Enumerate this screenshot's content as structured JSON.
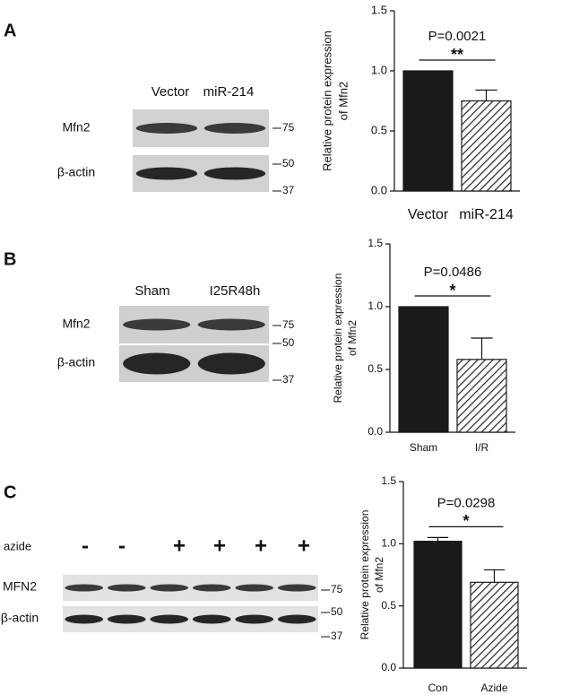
{
  "panels": [
    "A",
    "B",
    "C"
  ],
  "blots": [
    {
      "lanes": [
        "Vector",
        "miR-214"
      ],
      "rows": [
        "Mfn2",
        "β-actin"
      ],
      "markers": [
        75,
        50,
        37
      ]
    },
    {
      "lanes": [
        "Sham",
        "I25R48h"
      ],
      "rows": [
        "Mfn2",
        "β-actin"
      ],
      "markers": [
        75,
        50,
        37
      ]
    },
    {
      "treatment": "azide",
      "lanes": [
        "-",
        "-",
        "+",
        "+",
        "+",
        "+"
      ],
      "rows": [
        "MFN2",
        "β-actin"
      ],
      "markers": [
        75,
        50,
        37
      ]
    }
  ],
  "chart_data": [
    {
      "type": "bar",
      "y_label": [
        "Relative protein expression",
        "of Mfn2"
      ],
      "categories": [
        "Vector",
        "miR-214"
      ],
      "values": [
        1.0,
        0.75
      ],
      "errors": [
        0,
        0.09
      ],
      "colors": [
        "#1a1a1a",
        "#1a1a1a"
      ],
      "patterns": [
        "solid",
        "hatched"
      ],
      "ylim": [
        0,
        1.5
      ],
      "yticks": [
        {
          "value": 0,
          "label": "0.0"
        },
        {
          "value": 0.5,
          "label": "0.5"
        },
        {
          "value": 1,
          "label": "1.0"
        },
        {
          "value": 1.5,
          "label": "1.5"
        }
      ],
      "annotation": "P=0.0021",
      "significance": "**"
    },
    {
      "type": "bar",
      "y_label": [
        "Relative protein expression",
        "of Mfn2"
      ],
      "categories": [
        "Sham",
        "I/R"
      ],
      "values": [
        1.0,
        0.58
      ],
      "errors": [
        0,
        0.17
      ],
      "colors": [
        "#1a1a1a",
        "#1a1a1a"
      ],
      "patterns": [
        "solid",
        "hatched"
      ],
      "ylim": [
        0,
        1.5
      ],
      "yticks": [
        {
          "value": 0,
          "label": "0.0"
        },
        {
          "value": 0.5,
          "label": "0.5"
        },
        {
          "value": 1,
          "label": "1.0"
        },
        {
          "value": 1.5,
          "label": "1.5"
        }
      ],
      "annotation": "P=0.0486",
      "significance": "*"
    },
    {
      "type": "bar",
      "y_label": [
        "Relative protein expression",
        "of Mfn2"
      ],
      "categories": [
        "Con",
        "Azide"
      ],
      "values": [
        1.02,
        0.69
      ],
      "errors": [
        0.03,
        0.1
      ],
      "colors": [
        "#1a1a1a",
        "#1a1a1a"
      ],
      "patterns": [
        "solid",
        "hatched"
      ],
      "ylim": [
        0,
        1.5
      ],
      "yticks": [
        {
          "value": 0,
          "label": "0.0"
        },
        {
          "value": 0.5,
          "label": "0.5"
        },
        {
          "value": 1,
          "label": "1.0"
        },
        {
          "value": 1.5,
          "label": "1.5"
        }
      ],
      "annotation": "P=0.0298",
      "significance": "*"
    }
  ]
}
